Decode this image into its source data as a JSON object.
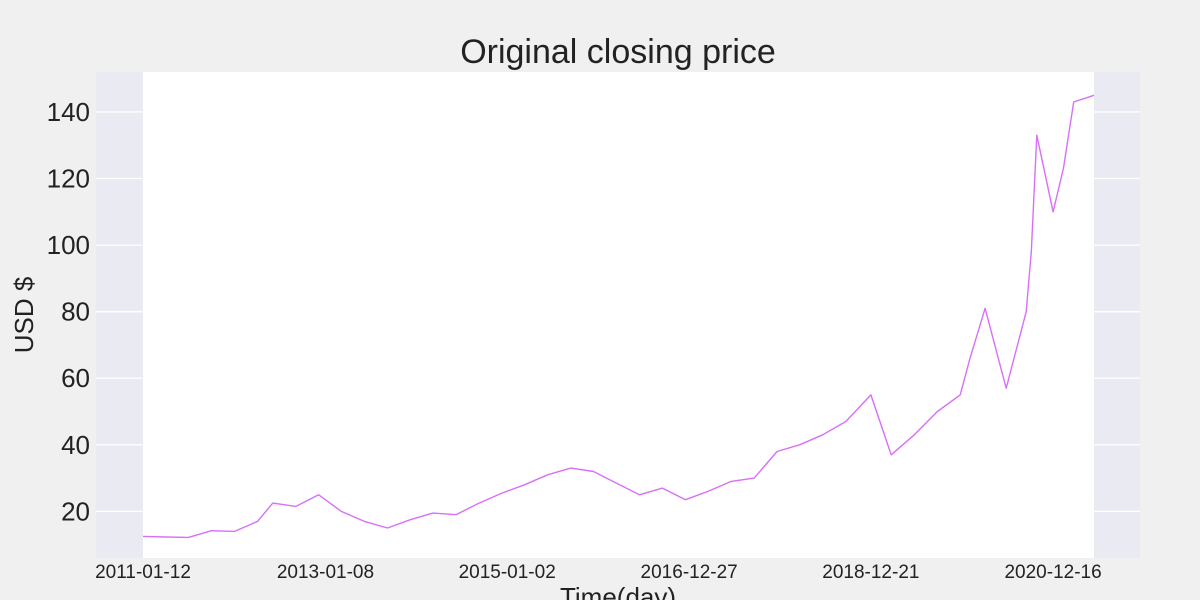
{
  "chart_data": {
    "type": "line",
    "title": "Original closing price",
    "xlabel": "Time(day)",
    "ylabel": "USD $",
    "x_ticks": [
      "2011-01-12",
      "2013-01-08",
      "2015-01-02",
      "2016-12-27",
      "2018-12-21",
      "2020-12-16"
    ],
    "x_range": [
      "2011-01-12",
      "2021-05-28"
    ],
    "y_ticks": [
      20,
      40,
      60,
      80,
      100,
      120,
      140
    ],
    "ylim": [
      6,
      152
    ],
    "grid": true,
    "colors": {
      "background": "#f0f0f0",
      "axes_background": "#eaeaf2",
      "plot_area": "#ffffff",
      "grid": "#ffffff",
      "line": "#d770f7",
      "text": "#222222"
    },
    "series": [
      {
        "x": [
          "2011-01-12",
          "2011-04-12",
          "2011-07-12",
          "2011-10-12",
          "2012-01-12",
          "2012-04-12",
          "2012-06-12",
          "2012-09-12",
          "2012-12-12",
          "2013-03-12",
          "2013-06-12",
          "2013-09-12",
          "2013-12-12",
          "2014-03-12",
          "2014-06-12",
          "2014-09-12",
          "2014-12-12",
          "2015-03-12",
          "2015-06-12",
          "2015-09-12",
          "2015-12-12",
          "2016-03-12",
          "2016-06-12",
          "2016-09-12",
          "2016-12-12",
          "2017-03-12",
          "2017-06-12",
          "2017-09-12",
          "2017-12-12",
          "2018-03-12",
          "2018-06-12",
          "2018-09-12",
          "2018-10-20",
          "2018-12-21",
          "2019-03-12",
          "2019-06-12",
          "2019-09-12",
          "2019-12-12",
          "2020-01-20",
          "2020-03-20",
          "2020-06-12",
          "2020-08-31",
          "2020-09-20",
          "2020-10-12",
          "2020-12-16",
          "2021-01-26",
          "2021-03-08",
          "2021-05-28"
        ],
        "y": [
          12.5,
          12.3,
          12.2,
          14.2,
          14.0,
          17.0,
          22.5,
          21.5,
          25.0,
          20.0,
          17.0,
          15.0,
          17.5,
          19.5,
          19.0,
          22.5,
          25.5,
          28.0,
          31.0,
          33.0,
          32.0,
          28.5,
          25.0,
          27.0,
          23.5,
          26.0,
          29.0,
          30.0,
          38.0,
          40.0,
          43.0,
          47.0,
          50.0,
          55.0,
          37.0,
          43.0,
          50.0,
          55.0,
          66.0,
          81.0,
          57.0,
          80.0,
          98.0,
          133.0,
          110.0,
          123.0,
          143.0,
          145.0
        ]
      }
    ]
  }
}
